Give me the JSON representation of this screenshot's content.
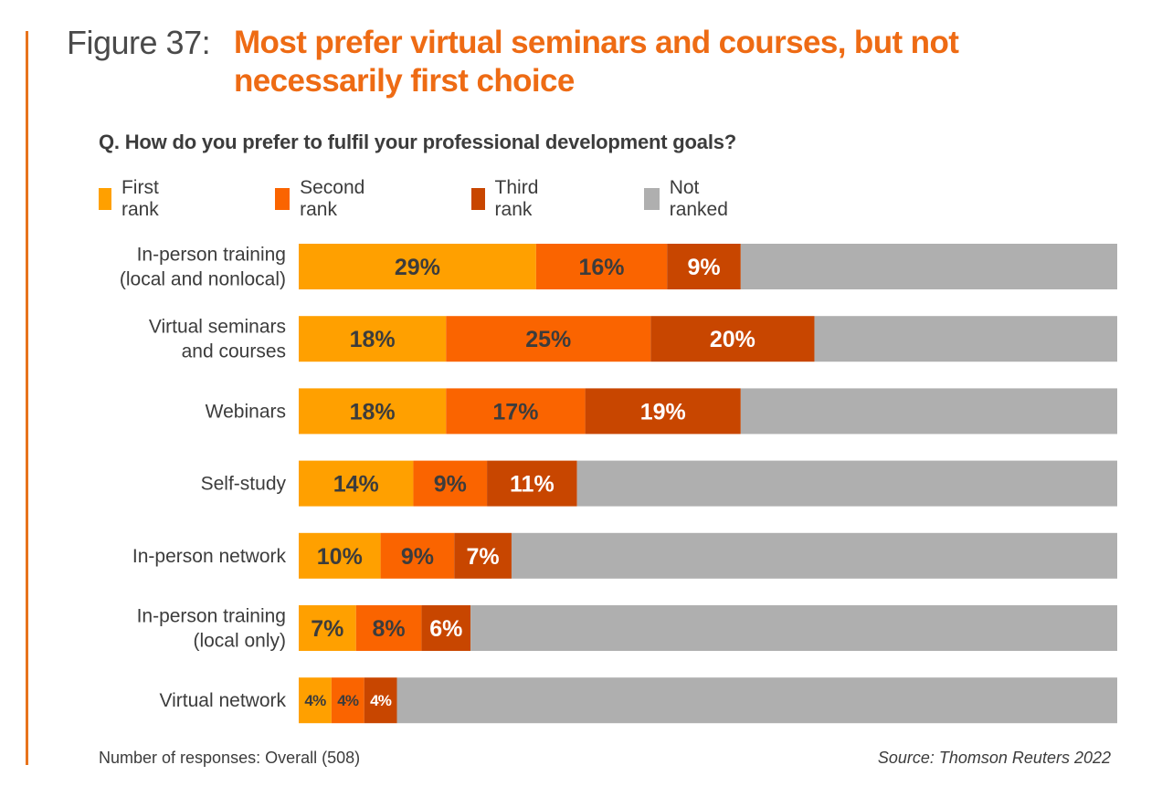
{
  "header": {
    "figure_label": "Figure 37:",
    "title": "Most prefer virtual seminars and courses, but not necessarily first choice",
    "question": "Q. How do you prefer to fulfil your professional development goals?"
  },
  "footer": {
    "responses": "Number of responses: Overall (508)",
    "source": "Source: Thomson Reuters 2022"
  },
  "colors": {
    "accent": "#ee6b14",
    "first_rank": "#ffa000",
    "second_rank": "#fa6400",
    "third_rank": "#c84600",
    "not_ranked": "#afafaf"
  },
  "chart_data": {
    "type": "bar",
    "orientation": "horizontal",
    "stacked": true,
    "title": "Most prefer virtual seminars and courses, but not necessarily first choice",
    "xlabel": "",
    "ylabel": "",
    "xlim": [
      0,
      100
    ],
    "unit": "%",
    "grid": false,
    "legend_position": "top-left",
    "categories": [
      [
        "In-person training",
        "(local and nonlocal)"
      ],
      [
        "Virtual seminars",
        "and courses"
      ],
      [
        "Webinars"
      ],
      [
        "Self-study"
      ],
      [
        "In-person network"
      ],
      [
        "In-person training",
        "(local only)"
      ],
      [
        "Virtual network"
      ]
    ],
    "series": [
      {
        "name": "First rank",
        "color_key": "first_rank",
        "label_color": "#3c3c3c",
        "values": [
          29,
          18,
          18,
          14,
          10,
          7,
          4
        ],
        "labels": [
          "29%",
          "18%",
          "18%",
          "14%",
          "10%",
          "7%",
          "4%"
        ]
      },
      {
        "name": "Second rank",
        "color_key": "second_rank",
        "label_color": "#3c3c3c",
        "values": [
          16,
          25,
          17,
          9,
          9,
          8,
          4
        ],
        "labels": [
          "16%",
          "25%",
          "17%",
          "9%",
          "9%",
          "8%",
          "4%"
        ]
      },
      {
        "name": "Third rank",
        "color_key": "third_rank",
        "label_color": "#ffffff",
        "values": [
          9,
          20,
          19,
          11,
          7,
          6,
          4
        ],
        "labels": [
          "9%",
          "20%",
          "19%",
          "11%",
          "7%",
          "6%",
          "4%"
        ]
      },
      {
        "name": "Not ranked",
        "color_key": "not_ranked",
        "label_color": null,
        "values": [
          46,
          37,
          46,
          66,
          74,
          79,
          88
        ],
        "labels": []
      }
    ]
  }
}
